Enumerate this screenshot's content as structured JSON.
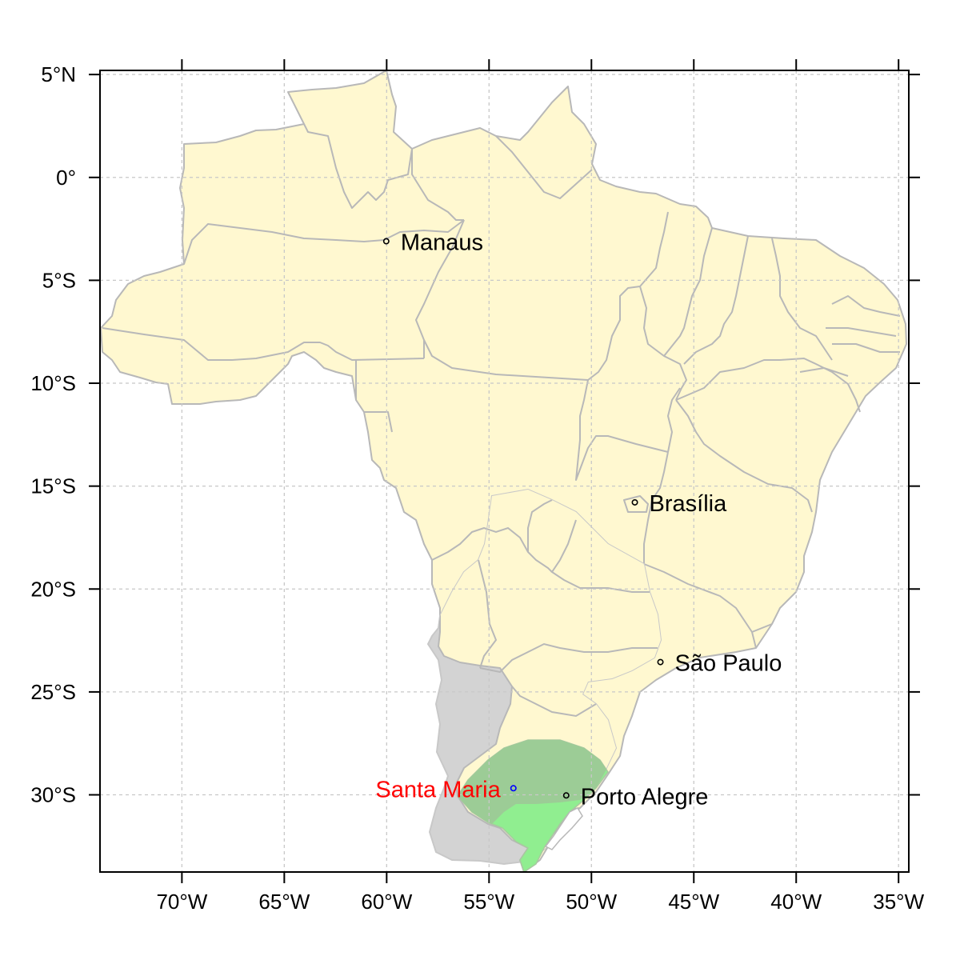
{
  "map": {
    "lon_range": [
      -74,
      -34.5
    ],
    "lat_range": [
      -33.75,
      5.2
    ],
    "x_ticks": [
      {
        "value": -70,
        "label": "70°W"
      },
      {
        "value": -65,
        "label": "65°W"
      },
      {
        "value": -60,
        "label": "60°W"
      },
      {
        "value": -55,
        "label": "55°W"
      },
      {
        "value": -50,
        "label": "50°W"
      },
      {
        "value": -45,
        "label": "45°W"
      },
      {
        "value": -40,
        "label": "40°W"
      },
      {
        "value": -35,
        "label": "35°W"
      }
    ],
    "y_ticks": [
      {
        "value": 5,
        "label": "5°N"
      },
      {
        "value": 0,
        "label": "0°"
      },
      {
        "value": -5,
        "label": "5°S"
      },
      {
        "value": -10,
        "label": "10°S"
      },
      {
        "value": -15,
        "label": "15°S"
      },
      {
        "value": -20,
        "label": "20°S"
      },
      {
        "value": -25,
        "label": "25°S"
      },
      {
        "value": -30,
        "label": "30°S"
      }
    ],
    "grid": true,
    "cities": [
      {
        "name": "Manaus",
        "lon": -60.02,
        "lat": -3.1,
        "color": "#000000",
        "label_side": "right"
      },
      {
        "name": "Brasília",
        "lon": -47.88,
        "lat": -15.79,
        "color": "#000000",
        "label_side": "right"
      },
      {
        "name": "São Paulo",
        "lon": -46.63,
        "lat": -23.55,
        "color": "#000000",
        "label_side": "right"
      },
      {
        "name": "Porto Alegre",
        "lon": -51.23,
        "lat": -30.03,
        "color": "#000000",
        "label_side": "right"
      },
      {
        "name": "Santa Maria",
        "lon": -53.81,
        "lat": -29.68,
        "color": "#ff0000",
        "marker_color": "#0000ff",
        "label_side": "left"
      }
    ],
    "colors": {
      "land": "#fff8d0",
      "border": "#b8b8b8",
      "basin": "#d3d3d3",
      "basin_overlap": "#d8d6c4",
      "state_highlight": "#90ee90",
      "state_overlap": "#9ccc96",
      "grid": "#c8c8c8"
    }
  }
}
